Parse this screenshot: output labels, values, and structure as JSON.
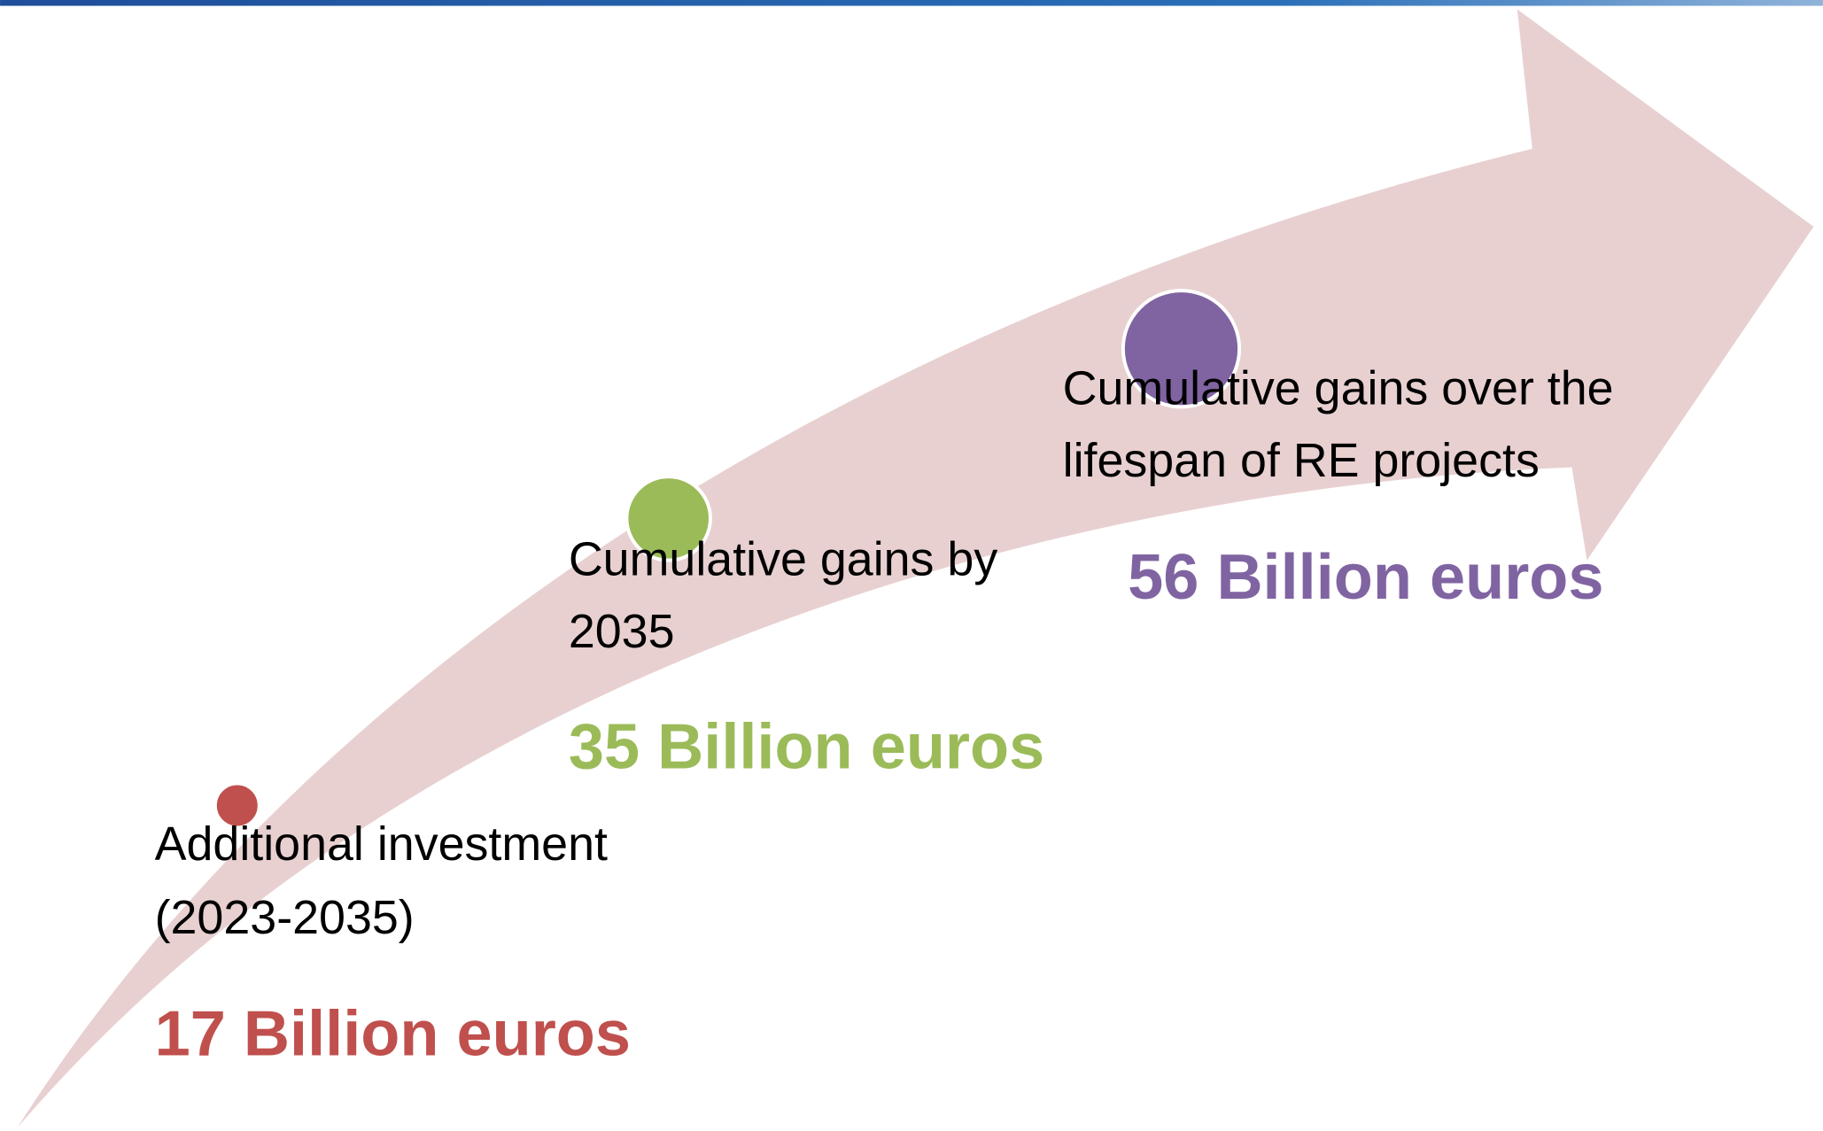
{
  "steps": [
    {
      "label_lines": [
        "Additional investment",
        "(2023-2035)"
      ],
      "value": "17 Billion euros"
    },
    {
      "label_lines": [
        "Cumulative gains by",
        "2035"
      ],
      "value": "35 Billion euros"
    },
    {
      "label_lines": [
        "Cumulative gains over the",
        "lifespan of RE projects"
      ],
      "value": "56 Billion euros"
    }
  ]
}
